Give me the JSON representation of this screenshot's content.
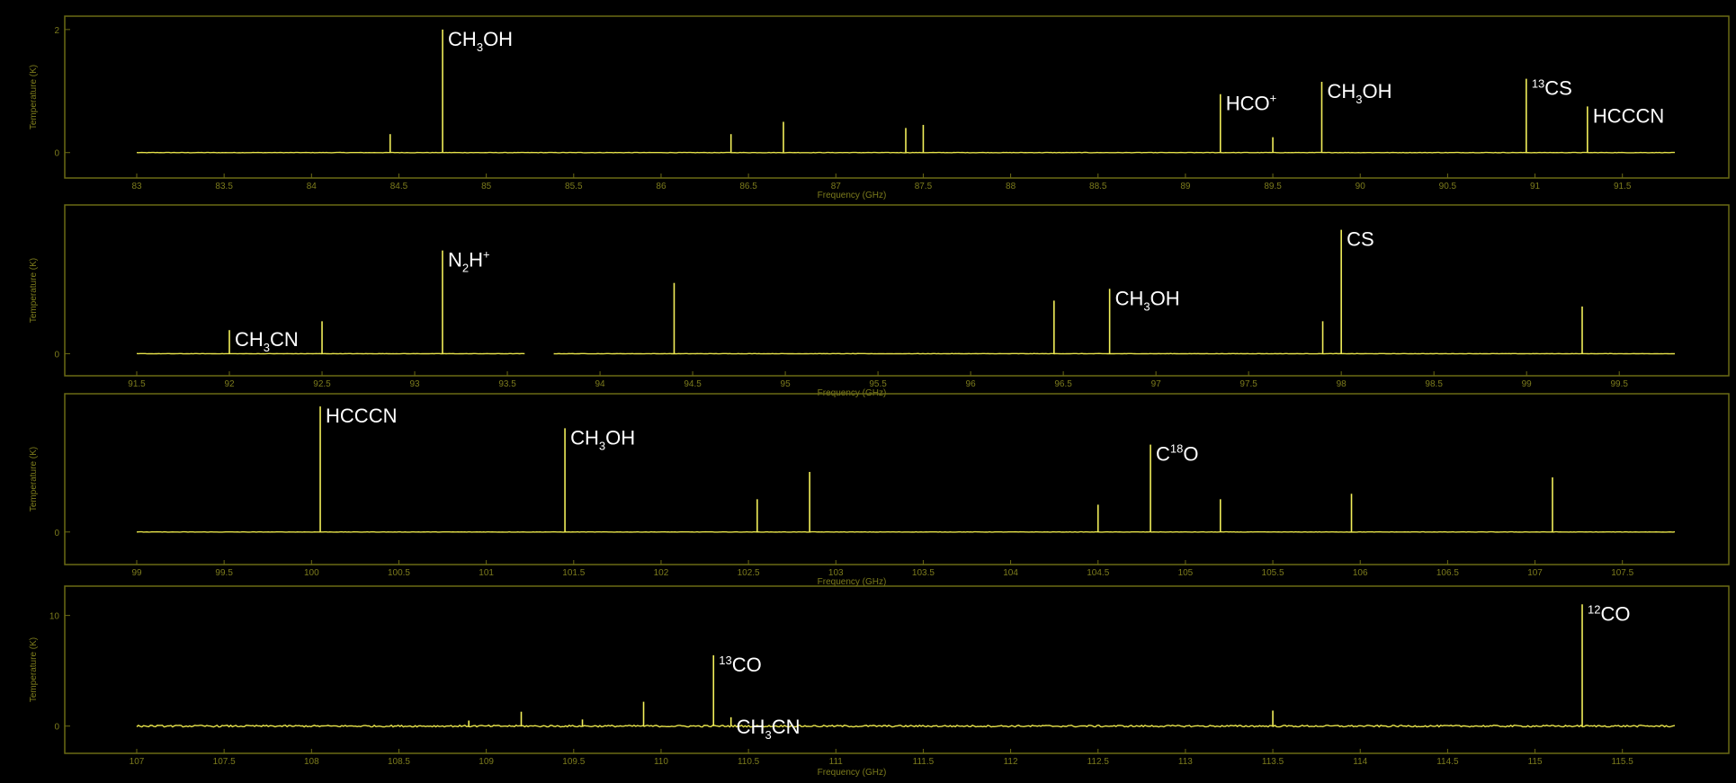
{
  "chart_data": [
    {
      "type": "line",
      "panel": 1,
      "ylabel": "Temperature (K)",
      "xlabel": "Frequency (GHz)",
      "x_ticks": [
        "83",
        "83.5",
        "84",
        "84.5",
        "85",
        "85.5",
        "86",
        "86.5",
        "87",
        "87.5",
        "88",
        "88.5",
        "89",
        "89.5",
        "90",
        "90.5",
        "91",
        "91.5"
      ],
      "y_ticks": [
        "0",
        "2"
      ],
      "xlim": [
        83,
        91.8
      ],
      "ylim": [
        -0.15,
        2.1
      ],
      "baseline": 0,
      "peaks": [
        {
          "x": 84.45,
          "y": 0.3
        },
        {
          "x": 84.75,
          "y": 2.0
        },
        {
          "x": 86.4,
          "y": 0.3
        },
        {
          "x": 86.7,
          "y": 0.5
        },
        {
          "x": 87.4,
          "y": 0.4
        },
        {
          "x": 87.5,
          "y": 0.45
        },
        {
          "x": 89.2,
          "y": 0.95
        },
        {
          "x": 89.5,
          "y": 0.25
        },
        {
          "x": 89.78,
          "y": 1.15
        },
        {
          "x": 90.95,
          "y": 1.2
        },
        {
          "x": 91.3,
          "y": 0.75
        }
      ],
      "annotations": [
        {
          "x": 84.75,
          "y": 2.0,
          "label": "CH",
          "sub": "3",
          "rest": "OH"
        },
        {
          "x": 89.2,
          "y": 0.95,
          "label": "HCO",
          "sup": "+"
        },
        {
          "x": 89.78,
          "y": 1.15,
          "label": "CH",
          "sub": "3",
          "rest": "OH"
        },
        {
          "x": 90.95,
          "y": 1.2,
          "pre": "13",
          "label": "CS"
        },
        {
          "x": 91.3,
          "y": 0.75,
          "label": "HCCCN"
        }
      ]
    },
    {
      "type": "line",
      "panel": 2,
      "ylabel": "Temperature (K)",
      "xlabel": "Frequency (GHz)",
      "x_ticks": [
        "91.5",
        "92",
        "92.5",
        "93",
        "93.5",
        "94",
        "94.5",
        "95",
        "95.5",
        "96",
        "96.5",
        "97",
        "97.5",
        "98",
        "98.5",
        "99",
        "99.5"
      ],
      "y_ticks": [
        "0"
      ],
      "xlim": [
        91.5,
        99.8
      ],
      "ylim": [
        -0.1,
        2.4
      ],
      "baseline": 0,
      "gap": [
        93.6,
        93.75
      ],
      "peaks": [
        {
          "x": 92.0,
          "y": 0.4
        },
        {
          "x": 92.5,
          "y": 0.55
        },
        {
          "x": 93.15,
          "y": 1.75
        },
        {
          "x": 94.4,
          "y": 1.2
        },
        {
          "x": 96.45,
          "y": 0.9
        },
        {
          "x": 96.75,
          "y": 1.1
        },
        {
          "x": 97.9,
          "y": 0.55
        },
        {
          "x": 98.0,
          "y": 2.1
        },
        {
          "x": 99.3,
          "y": 0.8
        }
      ],
      "annotations": [
        {
          "x": 92.0,
          "y": 0.4,
          "label": "CH",
          "sub": "3",
          "rest": "CN"
        },
        {
          "x": 93.15,
          "y": 1.75,
          "label": "N",
          "sub": "2",
          "rest": "H",
          "sup": "+"
        },
        {
          "x": 96.75,
          "y": 1.1,
          "label": "CH",
          "sub": "3",
          "rest": "OH"
        },
        {
          "x": 98.0,
          "y": 2.1,
          "label": "CS"
        }
      ]
    },
    {
      "type": "line",
      "panel": 3,
      "ylabel": "Temperature (K)",
      "xlabel": "Frequency (GHz)",
      "x_ticks": [
        "99",
        "99.5",
        "100",
        "100.5",
        "101",
        "101.5",
        "102",
        "102.5",
        "103",
        "103.5",
        "104",
        "104.5",
        "105",
        "105.5",
        "106",
        "106.5",
        "107",
        "107.5"
      ],
      "y_ticks": [
        "0"
      ],
      "xlim": [
        99,
        107.8
      ],
      "ylim": [
        -0.15,
        1.2
      ],
      "baseline": 0,
      "peaks": [
        {
          "x": 100.05,
          "y": 1.15
        },
        {
          "x": 101.45,
          "y": 0.95
        },
        {
          "x": 102.55,
          "y": 0.3
        },
        {
          "x": 102.85,
          "y": 0.55
        },
        {
          "x": 104.5,
          "y": 0.25
        },
        {
          "x": 104.8,
          "y": 0.8
        },
        {
          "x": 105.2,
          "y": 0.3
        },
        {
          "x": 105.95,
          "y": 0.35
        },
        {
          "x": 107.1,
          "y": 0.5
        }
      ],
      "annotations": [
        {
          "x": 100.05,
          "y": 1.15,
          "label": "HCCCN"
        },
        {
          "x": 101.45,
          "y": 0.95,
          "label": "CH",
          "sub": "3",
          "rest": "OH"
        },
        {
          "x": 104.8,
          "y": 0.8,
          "label": "C",
          "sup": "18",
          "rest": "O"
        }
      ]
    },
    {
      "type": "line",
      "panel": 4,
      "ylabel": "Temperature (K)",
      "xlabel": "Frequency (GHz)",
      "x_ticks": [
        "107",
        "107.5",
        "108",
        "108.5",
        "109",
        "109.5",
        "110",
        "110.5",
        "111",
        "111.5",
        "112",
        "112.5",
        "113",
        "113.5",
        "114",
        "114.5",
        "115",
        "115.5"
      ],
      "y_ticks": [
        "0",
        "10"
      ],
      "xlim": [
        107,
        115.8
      ],
      "ylim": [
        -1,
        12
      ],
      "baseline": 0,
      "peaks": [
        {
          "x": 108.9,
          "y": 0.5
        },
        {
          "x": 109.2,
          "y": 1.3
        },
        {
          "x": 109.55,
          "y": 0.6
        },
        {
          "x": 109.9,
          "y": 2.2
        },
        {
          "x": 110.3,
          "y": 6.4
        },
        {
          "x": 110.4,
          "y": 0.8
        },
        {
          "x": 113.5,
          "y": 1.4
        },
        {
          "x": 115.27,
          "y": 11.0
        }
      ],
      "annotations": [
        {
          "x": 110.3,
          "y": 6.4,
          "pre": "13",
          "label": "CO"
        },
        {
          "x": 110.4,
          "y": 0.8,
          "label": "CH",
          "sub": "3",
          "rest": "CN"
        },
        {
          "x": 115.27,
          "y": 11.0,
          "pre": "12",
          "label": "CO"
        }
      ]
    }
  ]
}
